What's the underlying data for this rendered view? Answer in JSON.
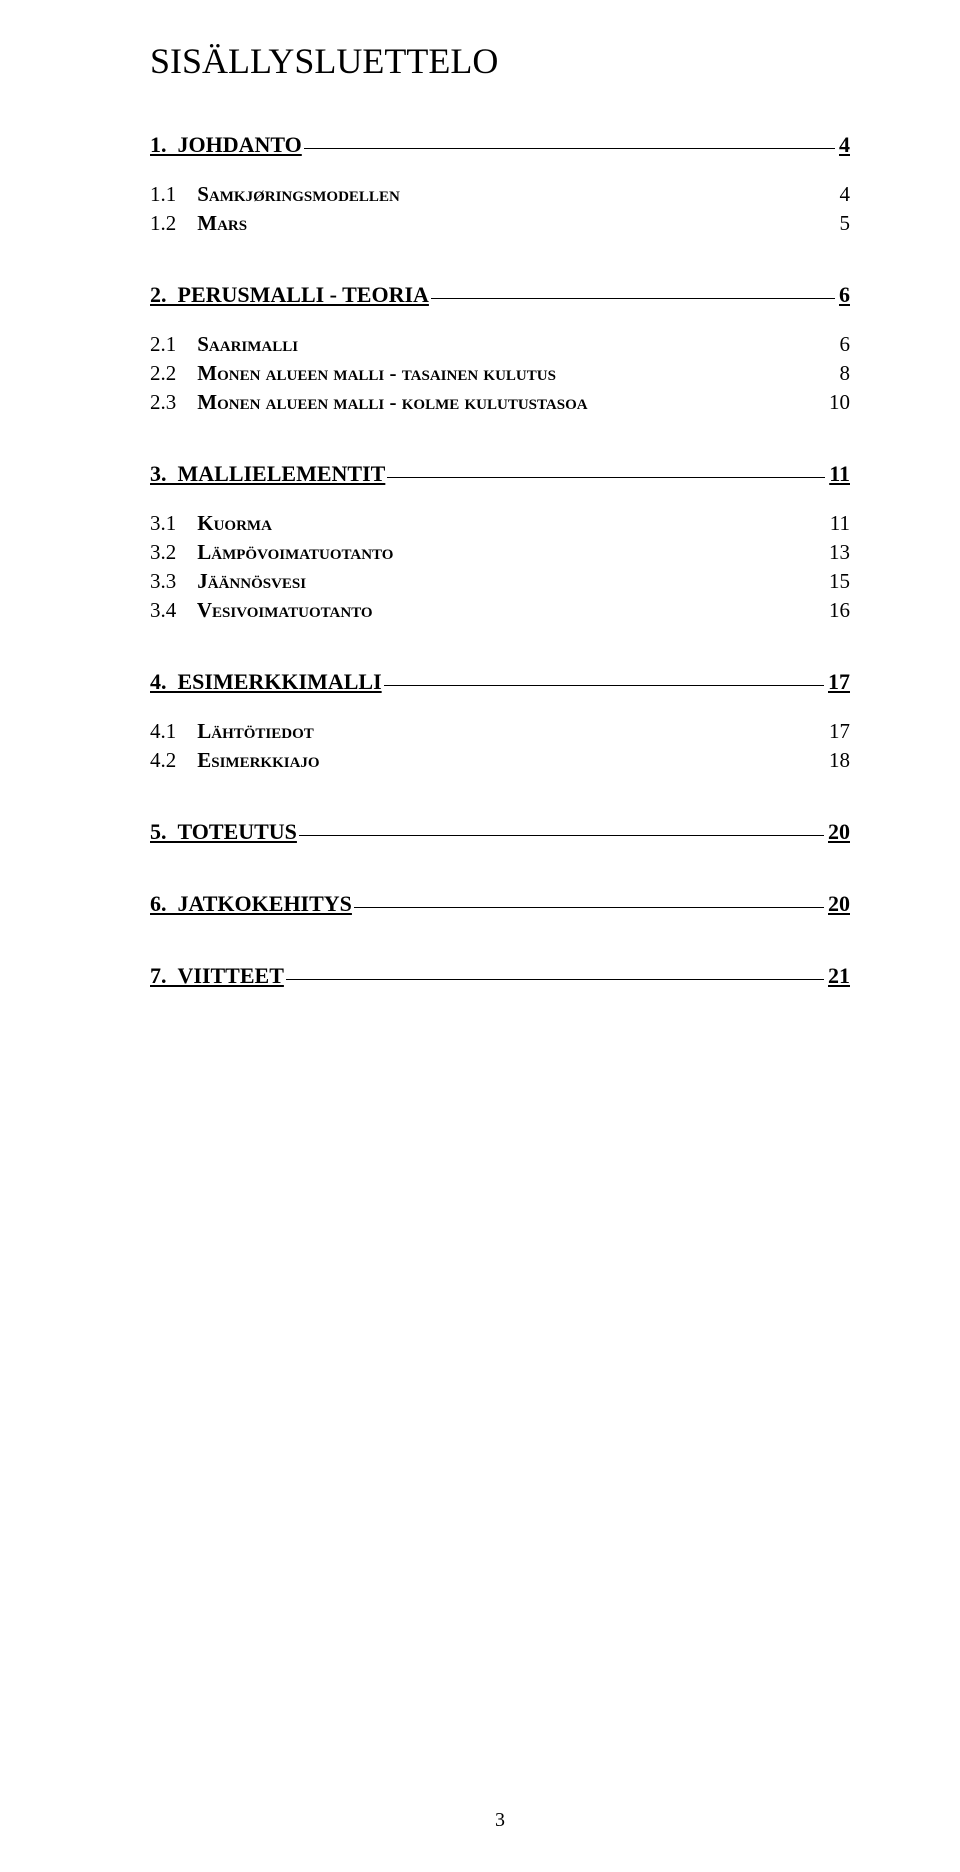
{
  "title": "SISÄLLYSLUETTELO",
  "toc": [
    {
      "num": "1.",
      "text": "JOHDANTO",
      "page": "4",
      "subs": [
        {
          "num": "1.1",
          "text": "Samkjøringsmodellen",
          "page": "4"
        },
        {
          "num": "1.2",
          "text": "Mars",
          "page": "5"
        }
      ]
    },
    {
      "num": "2.",
      "text": "PERUSMALLI - TEORIA",
      "page": "6",
      "subs": [
        {
          "num": "2.1",
          "text": "Saarimalli",
          "page": "6"
        },
        {
          "num": "2.2",
          "text": "Monen alueen malli - tasainen kulutus",
          "page": "8"
        },
        {
          "num": "2.3",
          "text": "Monen alueen malli - kolme kulutustasoa",
          "page": "10"
        }
      ]
    },
    {
      "num": "3.",
      "text": "MALLIELEMENTIT",
      "page": "11",
      "subs": [
        {
          "num": "3.1",
          "text": "Kuorma",
          "page": "11"
        },
        {
          "num": "3.2",
          "text": "Lämpövoimatuotanto",
          "page": "13"
        },
        {
          "num": "3.3",
          "text": "Jäännösvesi",
          "page": "15"
        },
        {
          "num": "3.4",
          "text": "Vesivoimatuotanto",
          "page": "16"
        }
      ]
    },
    {
      "num": "4.",
      "text": "ESIMERKKIMALLI",
      "page": "17",
      "subs": [
        {
          "num": "4.1",
          "text": "Lähtötiedot",
          "page": "17"
        },
        {
          "num": "4.2",
          "text": "Esimerkkiajo",
          "page": "18"
        }
      ]
    },
    {
      "num": "5.",
      "text": "TOTEUTUS",
      "page": "20",
      "subs": []
    },
    {
      "num": "6.",
      "text": "JATKOKEHITYS",
      "page": "20",
      "subs": []
    },
    {
      "num": "7.",
      "text": "VIITTEET",
      "page": "21",
      "subs": []
    }
  ],
  "footer_page": "3"
}
